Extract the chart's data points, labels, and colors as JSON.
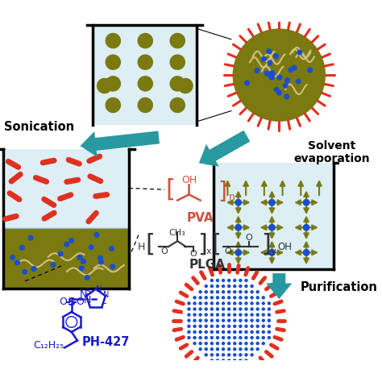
{
  "background": "#ffffff",
  "teal": "#2899a0",
  "olive": "#7a7a10",
  "red": "#e03020",
  "blue": "#1a4fcc",
  "blue_chem": "#1a1acc",
  "beaker_water": "#ddeef5",
  "sonication_label": "Sonication",
  "solvent_label": "Solvent\nevaporation",
  "purification_label": "Purification",
  "pva_label": "PVA",
  "plga_label": "PLGA",
  "ph427_label": "PH-427"
}
